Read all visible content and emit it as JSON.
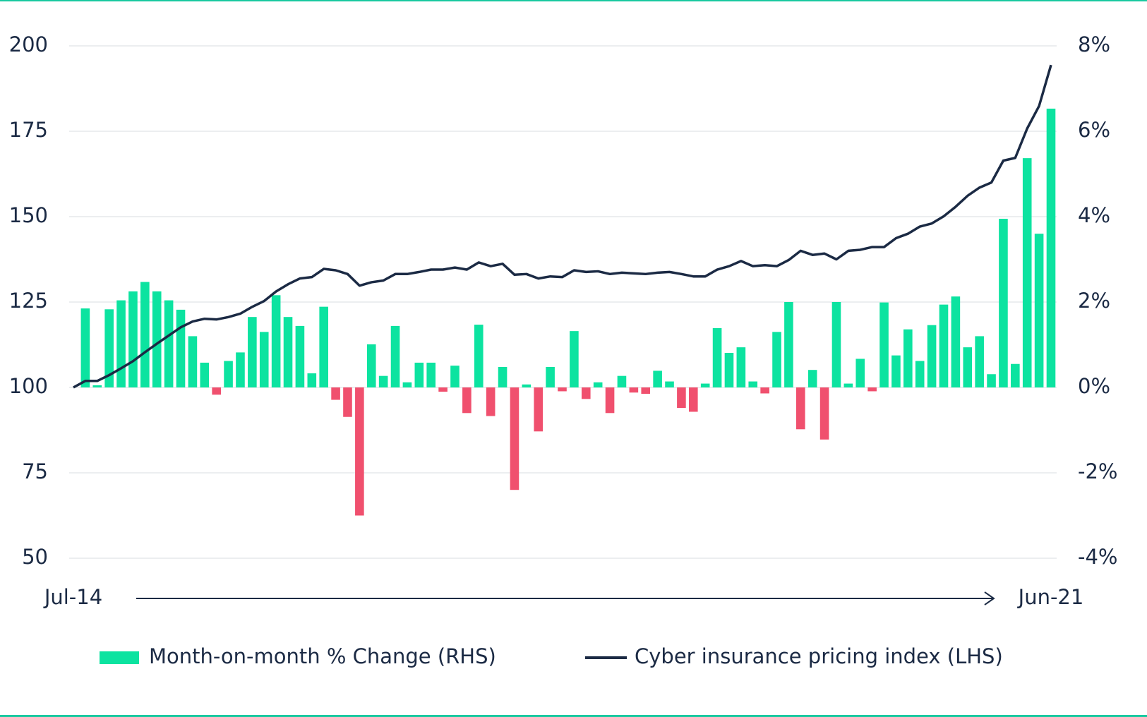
{
  "chart_data": {
    "type": "bar",
    "categories": [
      "Jul-14",
      null,
      null,
      null,
      null,
      null,
      null,
      null,
      null,
      null,
      null,
      null,
      null,
      null,
      null,
      null,
      null,
      null,
      null,
      null,
      null,
      null,
      null,
      null,
      null,
      null,
      null,
      null,
      null,
      null,
      null,
      null,
      null,
      null,
      null,
      null,
      null,
      null,
      null,
      null,
      null,
      null,
      null,
      null,
      null,
      null,
      null,
      null,
      null,
      null,
      null,
      null,
      null,
      null,
      null,
      null,
      null,
      null,
      null,
      null,
      null,
      null,
      null,
      null,
      null,
      null,
      null,
      null,
      null,
      null,
      null,
      null,
      null,
      null,
      null,
      null,
      null,
      null,
      null,
      null,
      null,
      null,
      "Jun-21"
    ],
    "series": [
      {
        "name": "Month-on-month % Change (RHS)",
        "type": "bar",
        "axis": "y2",
        "color": "#0ce3a0",
        "negative_color": "#f0506e",
        "values": [
          null,
          1.85,
          0.05,
          1.83,
          2.04,
          2.25,
          2.47,
          2.25,
          2.04,
          1.82,
          1.2,
          0.58,
          -0.17,
          0.62,
          0.82,
          1.65,
          1.3,
          2.16,
          1.65,
          1.44,
          0.33,
          1.89,
          -0.29,
          -0.69,
          -3.0,
          1.01,
          0.27,
          1.44,
          0.12,
          0.58,
          0.58,
          -0.1,
          0.51,
          -0.6,
          1.47,
          -0.67,
          0.48,
          -2.4,
          0.07,
          -1.03,
          0.48,
          -0.09,
          1.32,
          -0.27,
          0.12,
          -0.6,
          0.27,
          -0.12,
          -0.15,
          0.39,
          0.14,
          -0.48,
          -0.57,
          0.09,
          1.39,
          0.81,
          0.94,
          0.14,
          -0.14,
          1.3,
          2.0,
          -0.98,
          0.41,
          -1.22,
          2.0,
          0.09,
          0.67,
          -0.09,
          1.99,
          0.75,
          1.36,
          0.62,
          1.46,
          1.94,
          2.13,
          0.94,
          1.2,
          0.31,
          3.95,
          0.55,
          5.37,
          3.6,
          6.53
        ]
      },
      {
        "name": "Cyber insurance pricing index (LHS)",
        "type": "line",
        "axis": "y",
        "color": "#1b2a44",
        "values": [
          100,
          101.9,
          101.9,
          103.6,
          105.6,
          107.7,
          110.3,
          112.8,
          115.2,
          117.6,
          119.3,
          120.1,
          119.9,
          120.6,
          121.6,
          123.6,
          125.3,
          128.1,
          130.2,
          131.9,
          132.3,
          134.7,
          134.3,
          133.2,
          129.8,
          130.8,
          131.3,
          133.2,
          133.2,
          133.8,
          134.5,
          134.5,
          135.1,
          134.5,
          136.6,
          135.5,
          136.2,
          133.0,
          133.2,
          131.9,
          132.5,
          132.3,
          134.3,
          133.8,
          134.0,
          133.2,
          133.6,
          133.4,
          133.2,
          133.6,
          133.8,
          133.2,
          132.5,
          132.5,
          134.5,
          135.5,
          137.0,
          135.5,
          135.8,
          135.5,
          137.3,
          140.0,
          138.8,
          139.2,
          137.5,
          140.0,
          140.3,
          141.1,
          141.1,
          143.7,
          145.0,
          147.1,
          148.0,
          150.1,
          152.9,
          156.1,
          158.5,
          160.0,
          166.4,
          167.2,
          175.8,
          182.4,
          194.4
        ]
      }
    ],
    "ylim": [
      50,
      200
    ],
    "yticks": [
      50,
      75,
      100,
      125,
      150,
      175,
      200
    ],
    "y2lim": [
      -4,
      8
    ],
    "y2ticks": [
      {
        "value": -4,
        "label": "-4%"
      },
      {
        "value": -2,
        "label": "-2%"
      },
      {
        "value": 0,
        "label": "0%"
      },
      {
        "value": 2,
        "label": "2%"
      },
      {
        "value": 4,
        "label": "4%"
      },
      {
        "value": 6,
        "label": "6%"
      },
      {
        "value": 8,
        "label": "8%"
      }
    ],
    "grid": true,
    "legend": "bottom"
  }
}
